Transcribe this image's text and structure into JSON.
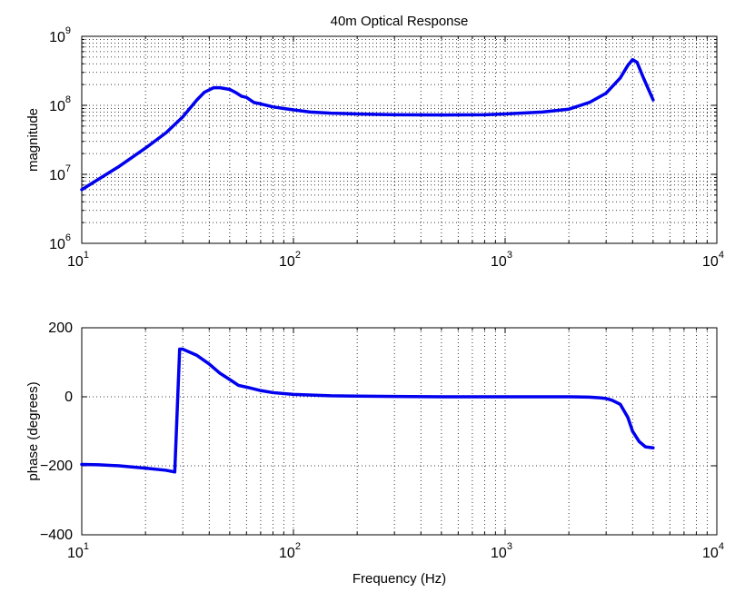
{
  "chart_data": [
    {
      "type": "line",
      "title": "40m Optical Response",
      "xlabel": "",
      "ylabel": "magnitude",
      "xscale": "log",
      "yscale": "log",
      "xlim": [
        10,
        10000
      ],
      "ylim": [
        1000000,
        1000000000
      ],
      "x_ticks": [
        {
          "base": "10",
          "exp": "1"
        },
        {
          "base": "10",
          "exp": "2"
        },
        {
          "base": "10",
          "exp": "3"
        },
        {
          "base": "10",
          "exp": "4"
        }
      ],
      "y_ticks": [
        {
          "base": "10",
          "exp": "6"
        },
        {
          "base": "10",
          "exp": "7"
        },
        {
          "base": "10",
          "exp": "8"
        },
        {
          "base": "10",
          "exp": "9"
        }
      ],
      "grid": true,
      "line_color": "#0000ee",
      "series": [
        {
          "x": [
            10,
            12,
            15,
            20,
            25,
            30,
            35,
            38,
            42,
            45,
            50,
            53,
            57,
            60,
            65,
            70,
            80,
            90,
            100,
            120,
            150,
            200,
            300,
            500,
            800,
            1000,
            1500,
            2000,
            2500,
            3000,
            3500,
            3800,
            4000,
            4200,
            4500,
            5000
          ],
          "y": [
            6000000,
            8500000,
            13000000,
            24000000,
            40000000,
            68000000,
            120000000,
            155000000,
            180000000,
            180000000,
            170000000,
            155000000,
            135000000,
            130000000,
            110000000,
            105000000,
            95000000,
            90000000,
            86000000,
            80000000,
            77000000,
            75000000,
            73000000,
            72500000,
            73000000,
            75000000,
            80000000,
            88000000,
            110000000,
            150000000,
            250000000,
            380000000,
            460000000,
            420000000,
            250000000,
            120000000
          ]
        }
      ]
    },
    {
      "type": "line",
      "title": "",
      "xlabel": "Frequency (Hz)",
      "ylabel": "phase (degrees)",
      "xscale": "log",
      "yscale": "linear",
      "xlim": [
        10,
        10000
      ],
      "ylim": [
        -400,
        200
      ],
      "x_ticks": [
        {
          "base": "10",
          "exp": "1"
        },
        {
          "base": "10",
          "exp": "2"
        },
        {
          "base": "10",
          "exp": "3"
        },
        {
          "base": "10",
          "exp": "4"
        }
      ],
      "y_tick_labels": [
        "−400",
        "−200",
        "0",
        "200"
      ],
      "y_tick_values": [
        -400,
        -200,
        0,
        200
      ],
      "grid": true,
      "line_color": "#0000ee",
      "series": [
        {
          "x": [
            10,
            12,
            15,
            20,
            25,
            27.5,
            29,
            30,
            35,
            40,
            45,
            50,
            55,
            60,
            70,
            80,
            100,
            150,
            200,
            300,
            500,
            1000,
            2000,
            2500,
            2800,
            3000,
            3200,
            3500,
            3800,
            4000,
            4300,
            4600,
            5000
          ],
          "y": [
            -196,
            -197,
            -200,
            -207,
            -213,
            -218,
            138,
            138,
            120,
            95,
            68,
            50,
            33,
            28,
            18,
            12,
            7,
            3,
            2,
            1,
            0,
            0,
            0,
            -1,
            -3,
            -5,
            -10,
            -22,
            -60,
            -100,
            -130,
            -145,
            -148
          ]
        }
      ]
    }
  ]
}
